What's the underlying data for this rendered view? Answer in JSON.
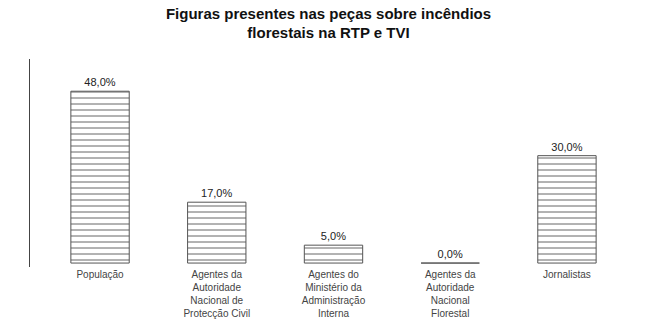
{
  "chart_data": {
    "type": "bar",
    "title": "Figuras presentes nas peças sobre incêndios\nflorestais na RTP e TVI",
    "categories": [
      "População",
      "Agentes da\nAutoridade\nNacional de\nProtecção Civil",
      "Agentes do\nMinistério da\nAdministração\nInterna",
      "Agentes da\nAutoridade\nNacional\nFlorestal",
      "Jornalistas"
    ],
    "values": [
      48.0,
      17.0,
      5.0,
      0.0,
      30.0
    ],
    "value_labels": [
      "48,0%",
      "17,0%",
      "5,0%",
      "0,0%",
      "30,0%"
    ],
    "data_labels": true,
    "color": "#999999",
    "ylim": [
      -1.1,
      57
    ],
    "yticks": [],
    "tick_labels": "x",
    "grid": false
  }
}
